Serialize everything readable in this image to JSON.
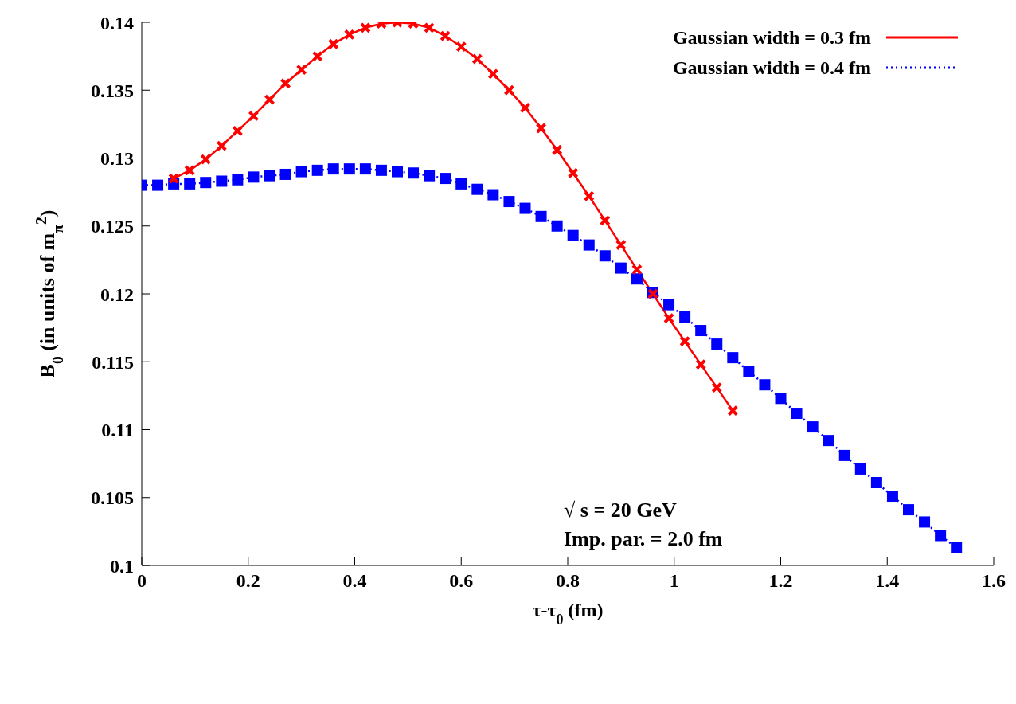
{
  "chart_data": {
    "type": "line",
    "xlabel": "τ-τ$_{0}$ (fm)",
    "ylabel": "B$_{0}$ (in units of m$_{π}$$^{2}$)",
    "annotations": [
      "√ s = 20 GeV",
      "Imp. par. = 2.0 fm"
    ],
    "xlim": [
      0,
      1.6
    ],
    "xticks": [
      0,
      0.2,
      0.4,
      0.6,
      0.8,
      1,
      1.2,
      1.4,
      1.6
    ],
    "ylim": [
      0.1,
      0.14
    ],
    "yticks": [
      0.1,
      0.105,
      0.11,
      0.115,
      0.12,
      0.125,
      0.13,
      0.135,
      0.14
    ],
    "grid": false,
    "legend": "top right",
    "series": [
      {
        "name": "Gaussian width = 0.3 fm",
        "color": "#ff0000",
        "marker": "cross",
        "line_style": "solid",
        "x": [
          0.06,
          0.09,
          0.12,
          0.15,
          0.18,
          0.21,
          0.24,
          0.27,
          0.3,
          0.33,
          0.36,
          0.39,
          0.42,
          0.45,
          0.48,
          0.51,
          0.54,
          0.57,
          0.6,
          0.63,
          0.66,
          0.69,
          0.72,
          0.75,
          0.78,
          0.81,
          0.84,
          0.87,
          0.9,
          0.93,
          0.96,
          0.99,
          1.02,
          1.05,
          1.08,
          1.11
        ],
        "values": [
          0.1285,
          0.1291,
          0.1299,
          0.1309,
          0.132,
          0.1331,
          0.1343,
          0.1355,
          0.1365,
          0.1375,
          0.1384,
          0.1391,
          0.1396,
          0.1399,
          0.14,
          0.1399,
          0.1396,
          0.139,
          0.1382,
          0.1373,
          0.1362,
          0.135,
          0.1337,
          0.1322,
          0.1306,
          0.1289,
          0.1272,
          0.1254,
          0.1236,
          0.1218,
          0.12,
          0.1182,
          0.1165,
          0.1148,
          0.1131,
          0.1114
        ]
      },
      {
        "name": "Gaussian width = 0.4 fm",
        "color": "#0000ff",
        "marker": "square",
        "line_style": "dotted",
        "x": [
          0,
          0.03,
          0.06,
          0.09,
          0.12,
          0.15,
          0.18,
          0.21,
          0.24,
          0.27,
          0.3,
          0.33,
          0.36,
          0.39,
          0.42,
          0.45,
          0.48,
          0.51,
          0.54,
          0.57,
          0.6,
          0.63,
          0.66,
          0.69,
          0.72,
          0.75,
          0.78,
          0.81,
          0.84,
          0.87,
          0.9,
          0.93,
          0.96,
          0.99,
          1.02,
          1.05,
          1.08,
          1.11,
          1.14,
          1.17,
          1.2,
          1.23,
          1.26,
          1.29,
          1.32,
          1.35,
          1.38,
          1.41,
          1.44,
          1.47,
          1.5,
          1.53
        ],
        "values": [
          0.128,
          0.128,
          0.1281,
          0.1281,
          0.1282,
          0.1283,
          0.1284,
          0.1286,
          0.1287,
          0.1288,
          0.129,
          0.1291,
          0.1292,
          0.1292,
          0.1292,
          0.1291,
          0.129,
          0.1289,
          0.1287,
          0.1285,
          0.1281,
          0.1277,
          0.1273,
          0.1268,
          0.1263,
          0.1257,
          0.125,
          0.1243,
          0.1236,
          0.1228,
          0.1219,
          0.1211,
          0.1201,
          0.1192,
          0.1183,
          0.1173,
          0.1163,
          0.1153,
          0.1143,
          0.1133,
          0.1123,
          0.1112,
          0.1102,
          0.1092,
          0.1081,
          0.1071,
          0.1061,
          0.1051,
          0.1041,
          0.1032,
          0.1022,
          0.1013
        ]
      }
    ]
  }
}
